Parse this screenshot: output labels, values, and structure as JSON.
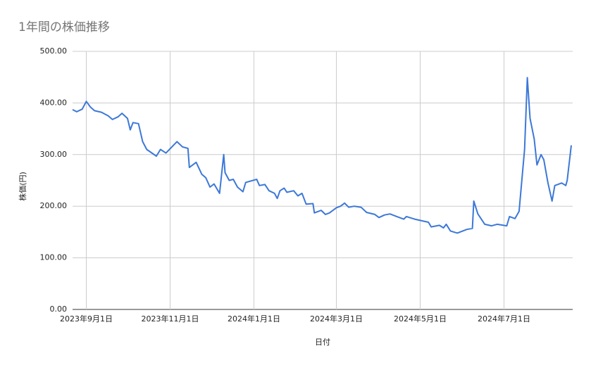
{
  "chart_data": {
    "type": "line",
    "title": "1年間の株価推移",
    "x_label": "日付",
    "y_label": "株価(円)",
    "x": [
      "2023-08-22",
      "2023-08-25",
      "2023-08-29",
      "2023-09-01",
      "2023-09-04",
      "2023-09-07",
      "2023-09-12",
      "2023-09-17",
      "2023-09-20",
      "2023-09-24",
      "2023-09-27",
      "2023-10-01",
      "2023-10-03",
      "2023-10-05",
      "2023-10-09",
      "2023-10-12",
      "2023-10-15",
      "2023-10-22",
      "2023-10-25",
      "2023-10-29",
      "2023-11-06",
      "2023-11-10",
      "2023-11-14",
      "2023-11-15",
      "2023-11-20",
      "2023-11-24",
      "2023-11-27",
      "2023-11-30",
      "2023-12-03",
      "2023-12-07",
      "2023-12-10",
      "2023-12-11",
      "2023-12-14",
      "2023-12-17",
      "2023-12-20",
      "2023-12-24",
      "2023-12-26",
      "2024-01-03",
      "2024-01-05",
      "2024-01-09",
      "2024-01-12",
      "2024-01-16",
      "2024-01-18",
      "2024-01-20",
      "2024-01-23",
      "2024-01-25",
      "2024-01-30",
      "2024-02-02",
      "2024-02-05",
      "2024-02-08",
      "2024-02-13",
      "2024-02-14",
      "2024-02-19",
      "2024-02-22",
      "2024-02-25",
      "2024-03-01",
      "2024-03-04",
      "2024-03-07",
      "2024-03-10",
      "2024-03-14",
      "2024-03-19",
      "2024-03-23",
      "2024-03-29",
      "2024-04-01",
      "2024-04-05",
      "2024-04-09",
      "2024-04-14",
      "2024-04-19",
      "2024-04-21",
      "2024-04-27",
      "2024-05-07",
      "2024-05-09",
      "2024-05-15",
      "2024-05-18",
      "2024-05-20",
      "2024-05-23",
      "2024-05-28",
      "2024-05-30",
      "2024-06-04",
      "2024-06-08",
      "2024-06-09",
      "2024-06-12",
      "2024-06-17",
      "2024-06-22",
      "2024-06-26",
      "2024-07-03",
      "2024-07-05",
      "2024-07-09",
      "2024-07-12",
      "2024-07-16",
      "2024-07-18",
      "2024-07-20",
      "2024-07-23",
      "2024-07-25",
      "2024-07-28",
      "2024-07-30",
      "2024-08-02",
      "2024-08-05",
      "2024-08-07",
      "2024-08-09",
      "2024-08-12",
      "2024-08-15",
      "2024-08-16",
      "2024-08-19"
    ],
    "series": [
      {
        "name": "株価(円)",
        "color": "#3c78d8",
        "values": [
          387,
          383,
          388,
          403,
          392,
          385,
          382,
          375,
          368,
          373,
          380,
          370,
          348,
          362,
          360,
          325,
          310,
          297,
          310,
          303,
          325,
          315,
          312,
          275,
          285,
          262,
          255,
          237,
          243,
          225,
          300,
          265,
          250,
          252,
          237,
          228,
          246,
          252,
          240,
          242,
          230,
          225,
          215,
          230,
          235,
          227,
          230,
          220,
          225,
          204,
          205,
          187,
          192,
          184,
          187,
          197,
          200,
          206,
          198,
          200,
          198,
          188,
          184,
          178,
          183,
          185,
          180,
          175,
          180,
          175,
          169,
          160,
          163,
          158,
          165,
          152,
          148,
          150,
          155,
          157,
          210,
          185,
          165,
          162,
          165,
          162,
          180,
          176,
          190,
          310,
          449,
          370,
          330,
          280,
          300,
          290,
          245,
          210,
          240,
          242,
          245,
          240,
          250,
          318
        ]
      }
    ],
    "xlim": [
      "2023-08-22",
      "2024-08-20"
    ],
    "xticks": [
      {
        "value": "2023-09-01",
        "label": "2023年9月1日"
      },
      {
        "value": "2023-11-01",
        "label": "2023年11月1日"
      },
      {
        "value": "2024-01-01",
        "label": "2024年1月1日"
      },
      {
        "value": "2024-03-01",
        "label": "2024年3月1日"
      },
      {
        "value": "2024-05-01",
        "label": "2024年5月1日"
      },
      {
        "value": "2024-07-01",
        "label": "2024年7月1日"
      }
    ],
    "ylim": [
      0,
      500
    ],
    "yticks": [
      {
        "value": 0,
        "label": "0.00"
      },
      {
        "value": 100,
        "label": "100.00"
      },
      {
        "value": 200,
        "label": "200.00"
      },
      {
        "value": 300,
        "label": "300.00"
      },
      {
        "value": 400,
        "label": "400.00"
      },
      {
        "value": 500,
        "label": "500.00"
      }
    ],
    "grid": true
  }
}
